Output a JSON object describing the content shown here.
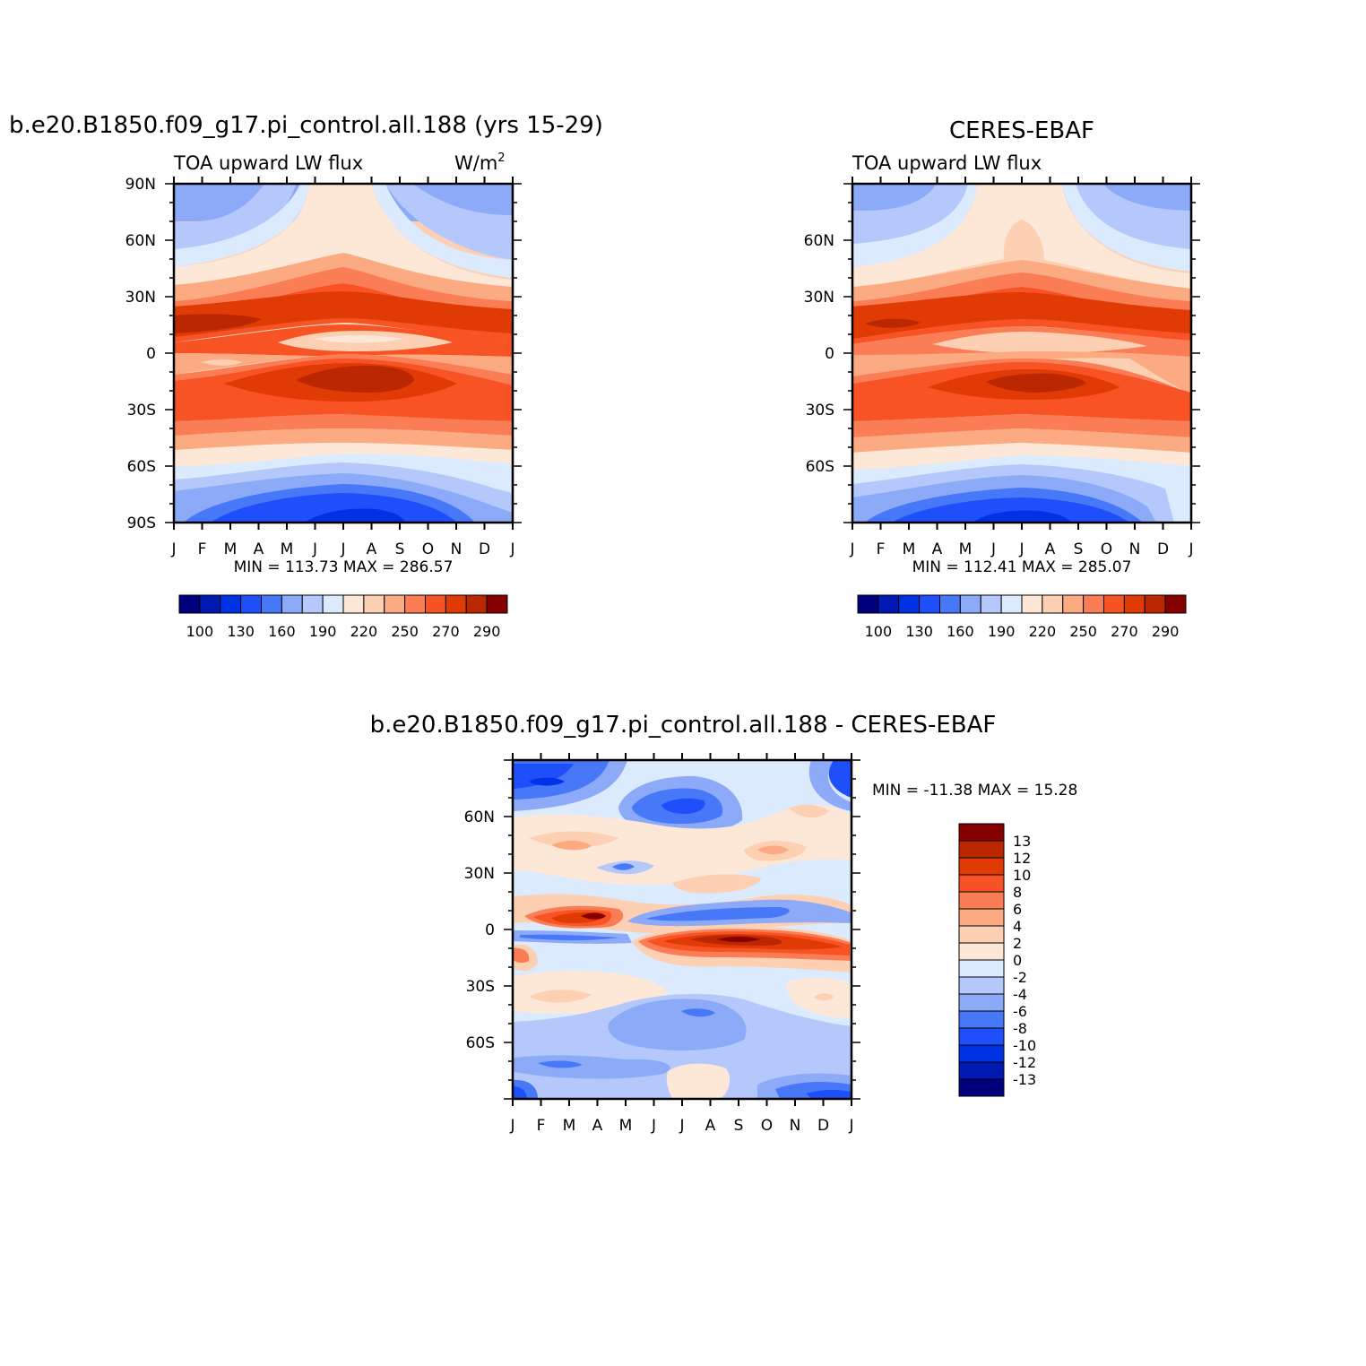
{
  "panels": [
    {
      "title": "b.e20.B1850.f09_g17.pi_control.all.188 (yrs 15-29)",
      "subtitle_left": "TOA upward LW flux",
      "subtitle_right": "W/m",
      "units_superscript": "2",
      "minmax": "MIN = 113.73 MAX = 286.57",
      "lat_ticks": [
        "90N",
        "60N",
        "30N",
        "0",
        "30S",
        "60S",
        "90S"
      ]
    },
    {
      "title": "CERES-EBAF",
      "subtitle_left": "TOA upward LW flux",
      "minmax": "MIN = 112.41 MAX = 285.07",
      "lat_ticks": [
        "60N",
        "30N",
        "0",
        "30S",
        "60S"
      ]
    },
    {
      "title": "b.e20.B1850.f09_g17.pi_control.all.188 - CERES-EBAF",
      "minmax": "MIN = -11.38 MAX = 15.28",
      "lat_ticks": [
        "60N",
        "30N",
        "0",
        "30S",
        "60S"
      ]
    }
  ],
  "month_ticks": [
    "J",
    "F",
    "M",
    "A",
    "M",
    "J",
    "J",
    "A",
    "S",
    "O",
    "N",
    "D",
    "J"
  ],
  "colorbar_flux": {
    "colors": [
      "#00007f",
      "#0019b2",
      "#0032e5",
      "#1e4ffa",
      "#4678f7",
      "#8caaf8",
      "#b4c8fc",
      "#dceafd",
      "#fde8d7",
      "#fdd0b4",
      "#fbaa82",
      "#fa7d55",
      "#f75325",
      "#e03a05",
      "#bb2700",
      "#870000"
    ],
    "labels": [
      "100",
      "130",
      "160",
      "190",
      "220",
      "250",
      "270",
      "290"
    ]
  },
  "colorbar_diff": {
    "colors": [
      "#870000",
      "#bb2700",
      "#e03a05",
      "#f75325",
      "#fa7d55",
      "#fbaa82",
      "#fdd0b4",
      "#fde8d7",
      "#dceafd",
      "#b4c8fc",
      "#8caaf8",
      "#4678f7",
      "#1e4ffa",
      "#0032e5",
      "#0019b2",
      "#00007f"
    ],
    "labels": [
      "13",
      "12",
      "10",
      "8",
      "6",
      "4",
      "2",
      "0",
      "-2",
      "-4",
      "-6",
      "-8",
      "-10",
      "-12",
      "-13"
    ]
  },
  "chart_data": [
    {
      "type": "heatmap",
      "title": "b.e20.B1850.f09_g17.pi_control.all.188 (yrs 15-29)",
      "subtitle": "TOA upward LW flux",
      "units": "W/m2",
      "x": [
        "J",
        "F",
        "M",
        "A",
        "M",
        "J",
        "J",
        "A",
        "S",
        "O",
        "N",
        "D",
        "J"
      ],
      "y": [
        "90S",
        "60S",
        "30S",
        "0",
        "30N",
        "60N",
        "90N"
      ],
      "min": 113.73,
      "max": 286.57,
      "levels": [
        100,
        130,
        160,
        190,
        220,
        250,
        270,
        290
      ]
    },
    {
      "type": "heatmap",
      "title": "CERES-EBAF",
      "subtitle": "TOA upward LW flux",
      "x": [
        "J",
        "F",
        "M",
        "A",
        "M",
        "J",
        "J",
        "A",
        "S",
        "O",
        "N",
        "D",
        "J"
      ],
      "y": [
        "60S",
        "30S",
        "0",
        "30N",
        "60N"
      ],
      "min": 112.41,
      "max": 285.07,
      "levels": [
        100,
        130,
        160,
        190,
        220,
        250,
        270,
        290
      ]
    },
    {
      "type": "heatmap",
      "title": "b.e20.B1850.f09_g17.pi_control.all.188 - CERES-EBAF",
      "x": [
        "J",
        "F",
        "M",
        "A",
        "M",
        "J",
        "J",
        "A",
        "S",
        "O",
        "N",
        "D",
        "J"
      ],
      "y": [
        "60S",
        "30S",
        "0",
        "30N",
        "60N"
      ],
      "min": -11.38,
      "max": 15.28,
      "levels": [
        -13,
        -12,
        -10,
        -8,
        -6,
        -4,
        -2,
        0,
        2,
        4,
        6,
        8,
        10,
        12,
        13
      ]
    }
  ]
}
